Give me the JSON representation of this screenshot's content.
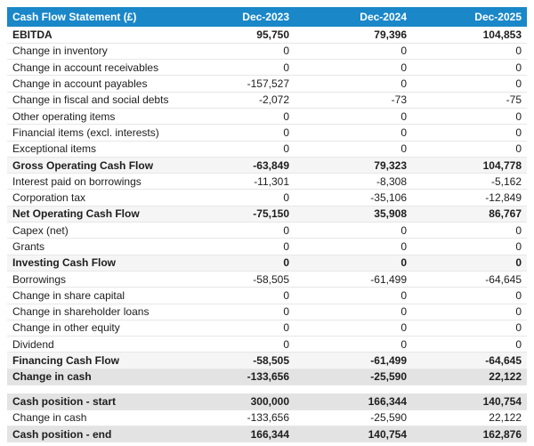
{
  "colors": {
    "header_bg": "#1a87c9",
    "header_text": "#ffffff",
    "subtotal_row_bg": "#f5f5f5",
    "total_row_bg": "#e3e3e3"
  },
  "chart_data": {
    "type": "table",
    "title": "Cash Flow Statement (£)",
    "columns": [
      "Dec-2023",
      "Dec-2024",
      "Dec-2025"
    ],
    "rows": [
      {
        "label": "EBITDA",
        "values": [
          "95,750",
          "79,396",
          "104,853"
        ],
        "style": "bold"
      },
      {
        "label": "Change in inventory",
        "values": [
          "0",
          "0",
          "0"
        ],
        "style": "normal"
      },
      {
        "label": "Change in account receivables",
        "values": [
          "0",
          "0",
          "0"
        ],
        "style": "normal"
      },
      {
        "label": "Change in account payables",
        "values": [
          "-157,527",
          "0",
          "0"
        ],
        "style": "normal"
      },
      {
        "label": "Change in fiscal and social debts",
        "values": [
          "-2,072",
          "-73",
          "-75"
        ],
        "style": "normal"
      },
      {
        "label": "Other operating items",
        "values": [
          "0",
          "0",
          "0"
        ],
        "style": "normal"
      },
      {
        "label": "Financial items (excl. interests)",
        "values": [
          "0",
          "0",
          "0"
        ],
        "style": "normal"
      },
      {
        "label": "Exceptional items",
        "values": [
          "0",
          "0",
          "0"
        ],
        "style": "normal"
      },
      {
        "label": "Gross Operating Cash Flow",
        "values": [
          "-63,849",
          "79,323",
          "104,778"
        ],
        "style": "subtotal"
      },
      {
        "label": "Interest paid on borrowings",
        "values": [
          "-11,301",
          "-8,308",
          "-5,162"
        ],
        "style": "normal"
      },
      {
        "label": "Corporation tax",
        "values": [
          "0",
          "-35,106",
          "-12,849"
        ],
        "style": "normal"
      },
      {
        "label": "Net Operating Cash Flow",
        "values": [
          "-75,150",
          "35,908",
          "86,767"
        ],
        "style": "subtotal"
      },
      {
        "label": "Capex (net)",
        "values": [
          "0",
          "0",
          "0"
        ],
        "style": "normal"
      },
      {
        "label": "Grants",
        "values": [
          "0",
          "0",
          "0"
        ],
        "style": "normal"
      },
      {
        "label": "Investing Cash Flow",
        "values": [
          "0",
          "0",
          "0"
        ],
        "style": "subtotal"
      },
      {
        "label": "Borrowings",
        "values": [
          "-58,505",
          "-61,499",
          "-64,645"
        ],
        "style": "normal"
      },
      {
        "label": "Change in share capital",
        "values": [
          "0",
          "0",
          "0"
        ],
        "style": "normal"
      },
      {
        "label": "Change in shareholder loans",
        "values": [
          "0",
          "0",
          "0"
        ],
        "style": "normal"
      },
      {
        "label": "Change in other equity",
        "values": [
          "0",
          "0",
          "0"
        ],
        "style": "normal"
      },
      {
        "label": "Dividend",
        "values": [
          "0",
          "0",
          "0"
        ],
        "style": "normal"
      },
      {
        "label": "Financing Cash Flow",
        "values": [
          "-58,505",
          "-61,499",
          "-64,645"
        ],
        "style": "subtotal"
      },
      {
        "label": "Change in cash",
        "values": [
          "-133,656",
          "-25,590",
          "22,122"
        ],
        "style": "total"
      }
    ],
    "summary_rows": [
      {
        "label": "Cash position - start",
        "values": [
          "300,000",
          "166,344",
          "140,754"
        ],
        "style": "total"
      },
      {
        "label": "Change in cash",
        "values": [
          "-133,656",
          "-25,590",
          "22,122"
        ],
        "style": "normal"
      },
      {
        "label": "Cash position - end",
        "values": [
          "166,344",
          "140,754",
          "162,876"
        ],
        "style": "total"
      }
    ]
  }
}
